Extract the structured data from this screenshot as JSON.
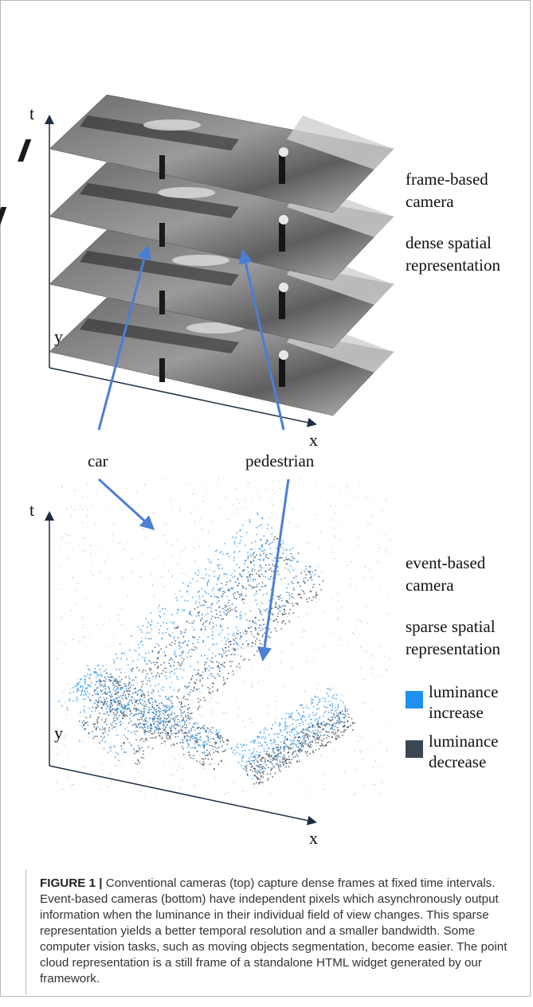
{
  "top_panel": {
    "axis_t": "t",
    "axis_y": "y",
    "axis_x": "x",
    "label_line1": "frame-based",
    "label_line2": "camera",
    "label_line3": "dense spatial",
    "label_line4": "representation"
  },
  "annotations": {
    "car": "car",
    "pedestrian": "pedestrian"
  },
  "bottom_panel": {
    "axis_t": "t",
    "axis_y": "y",
    "axis_x": "x",
    "label_line1": "event-based",
    "label_line2": "camera",
    "label_line3": "sparse spatial",
    "label_line4": "representation"
  },
  "legend": {
    "increase_line1": "luminance",
    "increase_line2": "increase",
    "decrease_line1": "luminance",
    "decrease_line2": "decrease",
    "increase_color": "#1e90f0",
    "decrease_color": "#3a4652"
  },
  "caption": {
    "label": "FIGURE 1 |",
    "text": " Conventional cameras (top) capture dense frames at fixed time intervals. Event-based cameras (bottom) have independent pixels which asynchronously output information when the luminance in their individual field of view changes. This sparse representation yields a better temporal resolution and a smaller bandwidth. Some computer vision tasks, such as moving objects segmentation, become easier. The point cloud representation is a still frame of a standalone HTML widget generated by our framework."
  }
}
